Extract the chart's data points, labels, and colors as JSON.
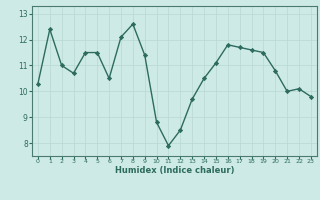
{
  "x": [
    0,
    1,
    2,
    3,
    4,
    5,
    6,
    7,
    8,
    9,
    10,
    11,
    12,
    13,
    14,
    15,
    16,
    17,
    18,
    19,
    20,
    21,
    22,
    23
  ],
  "y": [
    10.3,
    12.4,
    11.0,
    10.7,
    11.5,
    11.5,
    10.5,
    12.1,
    12.6,
    11.4,
    8.8,
    7.9,
    8.5,
    9.7,
    10.5,
    11.1,
    11.8,
    11.7,
    11.6,
    11.5,
    10.8,
    10.0,
    10.1,
    9.8
  ],
  "xlabel": "Humidex (Indice chaleur)",
  "line_color": "#2d6b5e",
  "marker_color": "#2d6b5e",
  "bg_color": "#ceeae6",
  "grid_color": "#b8d8d4",
  "ylim": [
    7.5,
    13.3
  ],
  "yticks": [
    8,
    9,
    10,
    11,
    12,
    13
  ],
  "xticks": [
    0,
    1,
    2,
    3,
    4,
    5,
    6,
    7,
    8,
    9,
    10,
    11,
    12,
    13,
    14,
    15,
    16,
    17,
    18,
    19,
    20,
    21,
    22,
    23
  ]
}
